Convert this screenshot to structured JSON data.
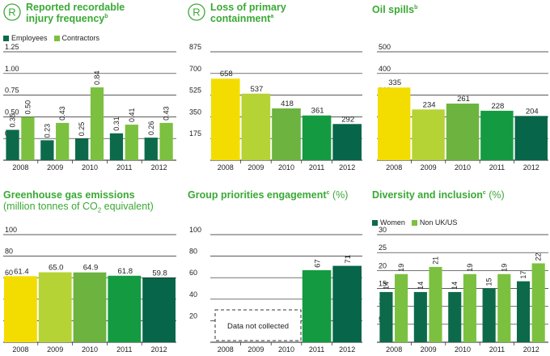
{
  "colors": {
    "title_green": "#3aa935",
    "yellow": "#f3dd00",
    "yellow_green": "#b5d334",
    "light_green": "#6cb33f",
    "green": "#149b42",
    "dark_green": "#076549",
    "employees": "#0c6a4a",
    "contractors": "#7cc040",
    "grid": "#222222"
  },
  "charts": {
    "injury": {
      "title_line1": "Reported recordable",
      "title_line2": "injury frequency",
      "title_sup": "b",
      "logo": "R",
      "legend_employees": "Employees",
      "legend_contractors": "Contractors"
    },
    "containment": {
      "title_line1": "Loss of primary",
      "title_line2": "containment",
      "title_sup": "a",
      "logo": "R"
    },
    "oil": {
      "title_line1": "Oil spills",
      "title_sup": "b"
    },
    "ghg": {
      "title_line1": "Greenhouse gas emissions",
      "subtitle_pre": "(million tonnes of CO",
      "subtitle_sub": "2",
      "subtitle_post": " equivalent)"
    },
    "engagement": {
      "title_line1": "Group priorities engagement",
      "title_sup": "c",
      "title_unit": " (%)",
      "note": "Data not collected"
    },
    "diversity": {
      "title_line1": "Diversity and inclusion",
      "title_sup": "c",
      "title_unit": " (%)",
      "legend_women": "Women",
      "legend_nonuk": "Non UK/US"
    }
  },
  "chart_data": [
    {
      "id": "injury",
      "type": "bar",
      "categories": [
        "2008",
        "2009",
        "2010",
        "2011",
        "2012"
      ],
      "series": [
        {
          "name": "Employees",
          "values": [
            0.35,
            0.23,
            0.25,
            0.31,
            0.26
          ],
          "labels": [
            "0.35",
            "0.23",
            "0.25",
            "0.31",
            "0.26"
          ]
        },
        {
          "name": "Contractors",
          "values": [
            0.5,
            0.43,
            0.84,
            0.41,
            0.43
          ],
          "labels": [
            "0.50",
            "0.43",
            "0.84",
            "0.41",
            "0.43"
          ]
        }
      ],
      "ylim": [
        0,
        1.25
      ],
      "yticks": [
        "0.25",
        "0.50",
        "0.75",
        "1.00",
        "1.25"
      ],
      "ytick_values": [
        0.25,
        0.5,
        0.75,
        1.0,
        1.25
      ]
    },
    {
      "id": "containment",
      "type": "bar",
      "categories": [
        "2008",
        "2009",
        "2010",
        "2011",
        "2012"
      ],
      "values": [
        658,
        537,
        418,
        361,
        292
      ],
      "labels": [
        "658",
        "537",
        "418",
        "361",
        "292"
      ],
      "ylim": [
        0,
        875
      ],
      "yticks": [
        "175",
        "350",
        "525",
        "700",
        "875"
      ],
      "ytick_values": [
        175,
        350,
        525,
        700,
        875
      ]
    },
    {
      "id": "oil",
      "type": "bar",
      "categories": [
        "2008",
        "2009",
        "2010",
        "2011",
        "2012"
      ],
      "values": [
        335,
        234,
        261,
        228,
        204
      ],
      "labels": [
        "335",
        "234",
        "261",
        "228",
        "204"
      ],
      "ylim": [
        0,
        500
      ],
      "yticks": [
        "100",
        "200",
        "300",
        "400",
        "500"
      ],
      "ytick_values": [
        100,
        200,
        300,
        400,
        500
      ]
    },
    {
      "id": "ghg",
      "type": "bar",
      "categories": [
        "2008",
        "2009",
        "2010",
        "2011",
        "2012"
      ],
      "values": [
        61.4,
        65.0,
        64.9,
        61.8,
        59.8
      ],
      "labels": [
        "61.4",
        "65.0",
        "64.9",
        "61.8",
        "59.8"
      ],
      "ylim": [
        0,
        100
      ],
      "yticks": [
        "20",
        "40",
        "60",
        "80",
        "100"
      ],
      "ytick_values": [
        20,
        40,
        60,
        80,
        100
      ]
    },
    {
      "id": "engagement",
      "type": "bar",
      "categories": [
        "2008",
        "2009",
        "2010",
        "2011",
        "2012"
      ],
      "values": [
        null,
        null,
        null,
        67,
        71
      ],
      "labels": [
        "",
        "",
        "",
        "67",
        "71"
      ],
      "ylim": [
        0,
        100
      ],
      "yticks": [
        "20",
        "40",
        "60",
        "80",
        "100"
      ],
      "ytick_values": [
        20,
        40,
        60,
        80,
        100
      ]
    },
    {
      "id": "diversity",
      "type": "bar",
      "categories": [
        "2008",
        "2009",
        "2010",
        "2011",
        "2012"
      ],
      "series": [
        {
          "name": "Women",
          "values": [
            14,
            14,
            14,
            15,
            17
          ],
          "labels": [
            "14",
            "14",
            "14",
            "15",
            "17"
          ]
        },
        {
          "name": "Non UK/US",
          "values": [
            19,
            21,
            19,
            19,
            22
          ],
          "labels": [
            "19",
            "21",
            "19",
            "19",
            "22"
          ]
        }
      ],
      "ylim": [
        0,
        30
      ],
      "yticks": [
        "5",
        "10",
        "15",
        "20",
        "25",
        "30"
      ],
      "ytick_values": [
        5,
        10,
        15,
        20,
        25,
        30
      ]
    }
  ]
}
